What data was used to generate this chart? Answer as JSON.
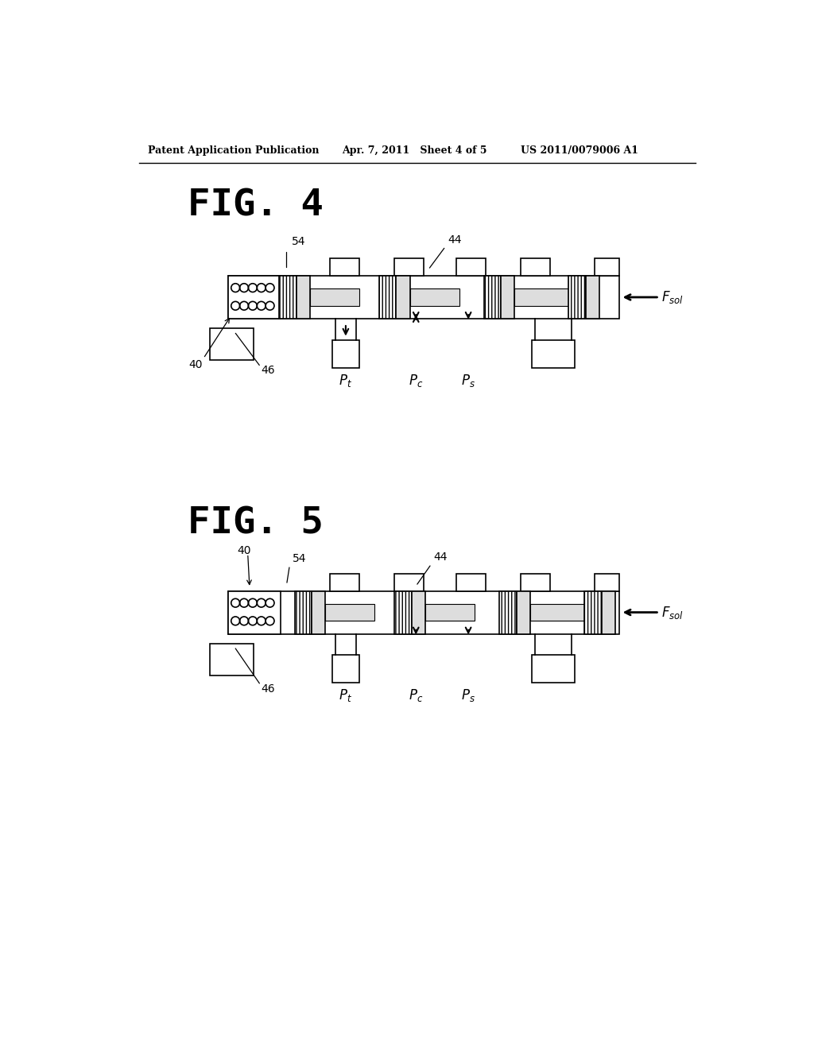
{
  "background_color": "#ffffff",
  "header_left": "Patent Application Publication",
  "header_center": "Apr. 7, 2011   Sheet 4 of 5",
  "header_right": "US 2011/0079006 A1",
  "fig4_title": "FIG. 4",
  "fig5_title": "FIG. 5",
  "line_color": "#000000",
  "gray_fill": "#bbbbbb",
  "light_gray": "#dddddd"
}
